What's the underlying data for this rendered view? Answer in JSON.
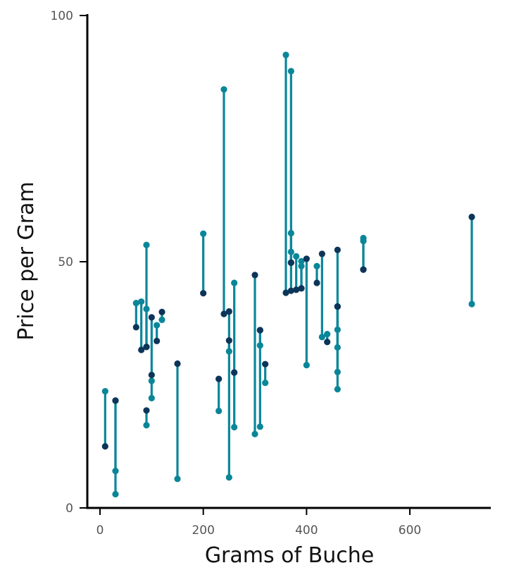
{
  "chart_data": {
    "type": "dumbbell",
    "xlabel": "Grams of Buche",
    "ylabel": "Price per Gram",
    "xlim": [
      -25,
      755
    ],
    "ylim": [
      0,
      100
    ],
    "x_ticks": [
      0,
      200,
      400,
      600
    ],
    "y_ticks": [
      0,
      50,
      100
    ],
    "grid": false,
    "colors": {
      "start": "#0d3559",
      "end": "#0a8699",
      "segment": "#0a8699"
    },
    "pairs": [
      {
        "x": 10,
        "start": 12.5,
        "end": 23.7
      },
      {
        "x": 30,
        "start": 21.8,
        "end": 7.5
      },
      {
        "x": 30,
        "start": 21.8,
        "end": 2.8
      },
      {
        "x": 70,
        "start": 36.7,
        "end": 41.6
      },
      {
        "x": 80,
        "start": 32.1,
        "end": 41.9
      },
      {
        "x": 90,
        "start": 32.7,
        "end": 53.4
      },
      {
        "x": 90,
        "start": 32.7,
        "end": 40.4
      },
      {
        "x": 90,
        "start": 19.8,
        "end": 16.8
      },
      {
        "x": 100,
        "start": 38.7,
        "end": 22.3
      },
      {
        "x": 100,
        "start": 27.0,
        "end": 25.8
      },
      {
        "x": 110,
        "start": 33.9,
        "end": 37.1
      },
      {
        "x": 120,
        "start": 39.8,
        "end": 38.2
      },
      {
        "x": 150,
        "start": 29.3,
        "end": 5.9
      },
      {
        "x": 200,
        "start": 43.6,
        "end": 55.7
      },
      {
        "x": 230,
        "start": 26.2,
        "end": 19.7
      },
      {
        "x": 240,
        "start": 39.4,
        "end": 85.0
      },
      {
        "x": 250,
        "start": 39.9,
        "end": 6.2
      },
      {
        "x": 250,
        "start": 34.0,
        "end": 31.8
      },
      {
        "x": 260,
        "start": 27.5,
        "end": 45.7
      },
      {
        "x": 260,
        "start": 27.5,
        "end": 16.4
      },
      {
        "x": 300,
        "start": 47.3,
        "end": 15.0
      },
      {
        "x": 310,
        "start": 36.1,
        "end": 33.0
      },
      {
        "x": 310,
        "start": 36.1,
        "end": 16.5
      },
      {
        "x": 320,
        "start": 29.2,
        "end": 25.4
      },
      {
        "x": 360,
        "start": 43.7,
        "end": 92.0
      },
      {
        "x": 370,
        "start": 44.1,
        "end": 88.7
      },
      {
        "x": 370,
        "start": 49.8,
        "end": 55.8
      },
      {
        "x": 370,
        "start": 49.8,
        "end": 52.0
      },
      {
        "x": 380,
        "start": 44.3,
        "end": 51.1
      },
      {
        "x": 390,
        "start": 44.6,
        "end": 50.1
      },
      {
        "x": 390,
        "start": 44.6,
        "end": 49.1
      },
      {
        "x": 400,
        "start": 50.6,
        "end": 29.0
      },
      {
        "x": 420,
        "start": 45.7,
        "end": 49.1
      },
      {
        "x": 430,
        "start": 51.6,
        "end": 34.7
      },
      {
        "x": 440,
        "start": 33.7,
        "end": 35.3
      },
      {
        "x": 460,
        "start": 52.4,
        "end": 24.1
      },
      {
        "x": 460,
        "start": 40.9,
        "end": 36.2
      },
      {
        "x": 460,
        "start": 40.9,
        "end": 32.6
      },
      {
        "x": 460,
        "start": 40.9,
        "end": 27.6
      },
      {
        "x": 510,
        "start": 48.4,
        "end": 54.2
      },
      {
        "x": 510,
        "start": 48.4,
        "end": 54.8
      },
      {
        "x": 720,
        "start": 59.1,
        "end": 41.4
      }
    ]
  }
}
